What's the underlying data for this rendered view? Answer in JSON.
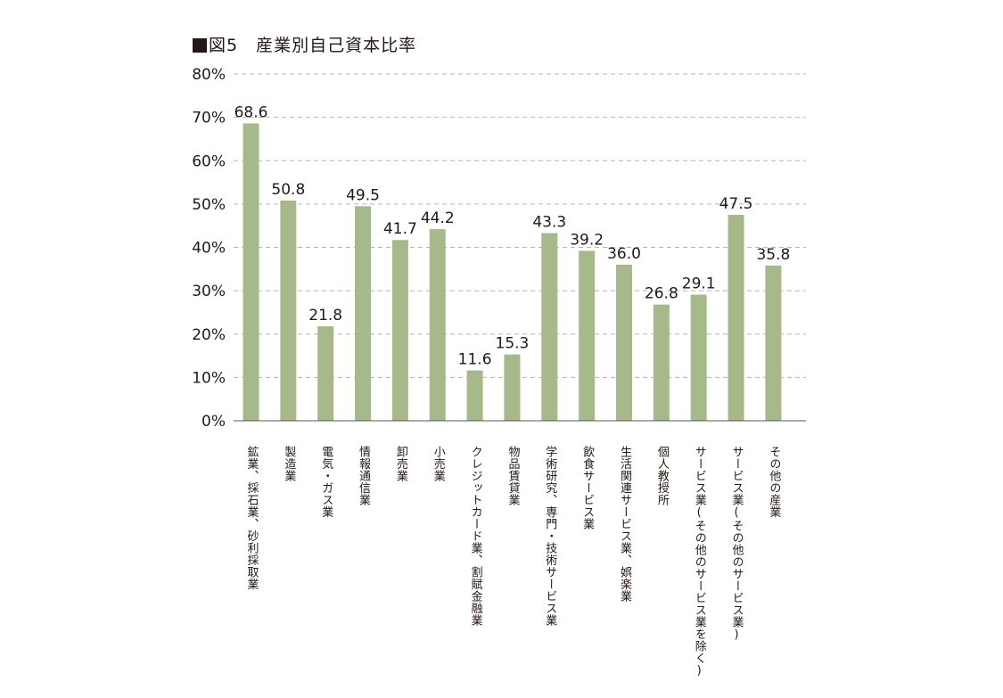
{
  "chart_data": {
    "type": "bar",
    "title": "図5　産業別自己資本比率",
    "title_marker": "■",
    "xlabel": "",
    "ylabel": "",
    "ylim": [
      0,
      80
    ],
    "yticks": [
      0,
      10,
      20,
      30,
      40,
      50,
      60,
      70,
      80
    ],
    "ytick_labels": [
      "0%",
      "10%",
      "20%",
      "30%",
      "40%",
      "50%",
      "60%",
      "70%",
      "80%"
    ],
    "grid": true,
    "legend": "none",
    "bar_color": "#a7b88a",
    "categories": [
      "鉱業、採石業、砂利採取業",
      "製造業",
      "電気・ガス業",
      "情報通信業",
      "卸売業",
      "小売業",
      "クレジットカード業、割賦金融業",
      "物品賃貸業",
      "学術研究、専門・技術サービス業",
      "飲食サービス業",
      "生活関連サービス業、娯楽業",
      "個人教授所",
      "サービス業(その他のサービス業を除く)",
      "サービス業(その他のサービス業)",
      "その他の産業"
    ],
    "values": [
      68.6,
      50.8,
      21.8,
      49.5,
      41.7,
      44.2,
      11.6,
      15.3,
      43.3,
      39.2,
      36.0,
      26.8,
      29.1,
      47.5,
      35.8
    ],
    "value_labels": [
      "68.6",
      "50.8",
      "21.8",
      "49.5",
      "41.7",
      "44.2",
      "11.6",
      "15.3",
      "43.3",
      "39.2",
      "36.0",
      "26.8",
      "29.1",
      "47.5",
      "35.8"
    ]
  }
}
